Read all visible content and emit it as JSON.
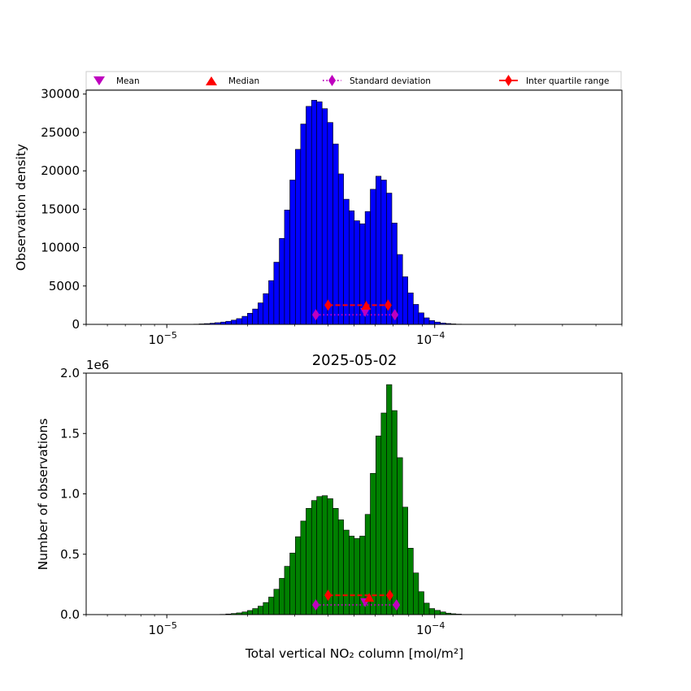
{
  "chart_data": [
    {
      "type": "bar",
      "xscale": "log",
      "xlim": [
        5e-06,
        0.0005
      ],
      "ylim": [
        0,
        30500
      ],
      "xlabel": "",
      "ylabel": "Observation density",
      "title": "",
      "x_tick_labels": [
        {
          "value": 1e-05,
          "base": "10",
          "exp": "−5"
        },
        {
          "value": 0.0001,
          "base": "10",
          "exp": "−4"
        }
      ],
      "y_ticks": [
        0,
        5000,
        10000,
        15000,
        20000,
        25000,
        30000
      ],
      "y_tick_labels": [
        "0",
        "5000",
        "10000",
        "15000",
        "20000",
        "25000",
        "30000"
      ],
      "bar_color": "#0000ff",
      "bins": [
        [
          1.26e-05,
          1.32e-05,
          30
        ],
        [
          1.32e-05,
          1.38e-05,
          60
        ],
        [
          1.38e-05,
          1.45e-05,
          100
        ],
        [
          1.45e-05,
          1.51e-05,
          150
        ],
        [
          1.51e-05,
          1.59e-05,
          220
        ],
        [
          1.59e-05,
          1.66e-05,
          300
        ],
        [
          1.66e-05,
          1.74e-05,
          400
        ],
        [
          1.74e-05,
          1.82e-05,
          550
        ],
        [
          1.82e-05,
          1.91e-05,
          750
        ],
        [
          1.91e-05,
          2e-05,
          1050
        ],
        [
          2e-05,
          2.09e-05,
          1450
        ],
        [
          2.09e-05,
          2.19e-05,
          2000
        ],
        [
          2.19e-05,
          2.29e-05,
          2800
        ],
        [
          2.29e-05,
          2.4e-05,
          4000
        ],
        [
          2.4e-05,
          2.51e-05,
          5700
        ],
        [
          2.51e-05,
          2.63e-05,
          8100
        ],
        [
          2.63e-05,
          2.75e-05,
          11200
        ],
        [
          2.75e-05,
          2.88e-05,
          14900
        ],
        [
          2.88e-05,
          3.02e-05,
          18800
        ],
        [
          3.02e-05,
          3.16e-05,
          22800
        ],
        [
          3.16e-05,
          3.31e-05,
          26100
        ],
        [
          3.31e-05,
          3.47e-05,
          28400
        ],
        [
          3.47e-05,
          3.63e-05,
          29200
        ],
        [
          3.63e-05,
          3.8e-05,
          29000
        ],
        [
          3.8e-05,
          3.98e-05,
          28100
        ],
        [
          3.98e-05,
          4.17e-05,
          26300
        ],
        [
          4.17e-05,
          4.37e-05,
          23500
        ],
        [
          4.37e-05,
          4.57e-05,
          19600
        ],
        [
          4.57e-05,
          4.79e-05,
          16300
        ],
        [
          4.79e-05,
          5.01e-05,
          14800
        ],
        [
          5.01e-05,
          5.25e-05,
          13500
        ],
        [
          5.25e-05,
          5.5e-05,
          13100
        ],
        [
          5.5e-05,
          5.75e-05,
          14700
        ],
        [
          5.75e-05,
          6.03e-05,
          17600
        ],
        [
          6.03e-05,
          6.31e-05,
          19300
        ],
        [
          6.31e-05,
          6.61e-05,
          18800
        ],
        [
          6.61e-05,
          6.92e-05,
          17100
        ],
        [
          6.92e-05,
          7.24e-05,
          13200
        ],
        [
          7.24e-05,
          7.59e-05,
          9100
        ],
        [
          7.59e-05,
          7.94e-05,
          6200
        ],
        [
          7.94e-05,
          8.32e-05,
          4100
        ],
        [
          8.32e-05,
          8.71e-05,
          2600
        ],
        [
          8.71e-05,
          9.12e-05,
          1500
        ],
        [
          9.12e-05,
          9.55e-05,
          850
        ],
        [
          9.55e-05,
          0.0001,
          500
        ],
        [
          0.0001,
          0.000105,
          300
        ],
        [
          0.000105,
          0.00011,
          180
        ],
        [
          0.00011,
          0.000115,
          110
        ],
        [
          0.000115,
          0.00012,
          60
        ],
        [
          0.00012,
          0.000126,
          30
        ]
      ],
      "stats": {
        "mean": {
          "x": 5.5e-05,
          "y": 1500
        },
        "median": {
          "x": 5.55e-05,
          "y": 2450
        },
        "std_range": [
          3.6e-05,
          7.1e-05
        ],
        "std_y": 1250,
        "iqr_range": [
          4e-05,
          6.7e-05
        ],
        "iqr_y": 2500
      }
    },
    {
      "type": "bar",
      "xscale": "log",
      "xlim": [
        5e-06,
        0.0005
      ],
      "ylim": [
        0,
        2000000
      ],
      "xlabel": "Total vertical NO₂ column [mol/m²]",
      "ylabel": "Number of observations",
      "title": "2025-05-02",
      "offset_label": "1e6",
      "x_tick_labels": [
        {
          "value": 1e-05,
          "base": "10",
          "exp": "−5"
        },
        {
          "value": 0.0001,
          "base": "10",
          "exp": "−4"
        }
      ],
      "y_ticks": [
        0,
        500000,
        1000000,
        1500000,
        2000000
      ],
      "y_tick_labels": [
        "0.0",
        "0.5",
        "1.0",
        "1.5",
        "2.0"
      ],
      "bar_color": "#008000",
      "bins": [
        [
          1.58e-05,
          1.66e-05,
          2000
        ],
        [
          1.66e-05,
          1.74e-05,
          5000
        ],
        [
          1.74e-05,
          1.82e-05,
          9000
        ],
        [
          1.82e-05,
          1.91e-05,
          14000
        ],
        [
          1.91e-05,
          2e-05,
          22000
        ],
        [
          2e-05,
          2.09e-05,
          34000
        ],
        [
          2.09e-05,
          2.19e-05,
          50000
        ],
        [
          2.19e-05,
          2.29e-05,
          70000
        ],
        [
          2.29e-05,
          2.4e-05,
          100000
        ],
        [
          2.4e-05,
          2.51e-05,
          145000
        ],
        [
          2.51e-05,
          2.63e-05,
          210000
        ],
        [
          2.63e-05,
          2.75e-05,
          300000
        ],
        [
          2.75e-05,
          2.88e-05,
          400000
        ],
        [
          2.88e-05,
          3.02e-05,
          510000
        ],
        [
          3.02e-05,
          3.16e-05,
          645000
        ],
        [
          3.16e-05,
          3.31e-05,
          775000
        ],
        [
          3.31e-05,
          3.47e-05,
          880000
        ],
        [
          3.47e-05,
          3.63e-05,
          945000
        ],
        [
          3.63e-05,
          3.8e-05,
          978000
        ],
        [
          3.8e-05,
          3.98e-05,
          985000
        ],
        [
          3.98e-05,
          4.17e-05,
          960000
        ],
        [
          4.17e-05,
          4.37e-05,
          880000
        ],
        [
          4.37e-05,
          4.57e-05,
          785000
        ],
        [
          4.57e-05,
          4.79e-05,
          700000
        ],
        [
          4.79e-05,
          5.01e-05,
          650000
        ],
        [
          5.01e-05,
          5.25e-05,
          630000
        ],
        [
          5.25e-05,
          5.5e-05,
          650000
        ],
        [
          5.5e-05,
          5.75e-05,
          830000
        ],
        [
          5.75e-05,
          6.03e-05,
          1170000
        ],
        [
          6.03e-05,
          6.31e-05,
          1480000
        ],
        [
          6.31e-05,
          6.61e-05,
          1670000
        ],
        [
          6.61e-05,
          6.92e-05,
          1905000
        ],
        [
          6.92e-05,
          7.24e-05,
          1690000
        ],
        [
          7.24e-05,
          7.59e-05,
          1300000
        ],
        [
          7.59e-05,
          7.94e-05,
          890000
        ],
        [
          7.94e-05,
          8.32e-05,
          550000
        ],
        [
          8.32e-05,
          8.71e-05,
          345000
        ],
        [
          8.71e-05,
          9.12e-05,
          190000
        ],
        [
          9.12e-05,
          9.55e-05,
          95000
        ],
        [
          9.55e-05,
          0.0001,
          50000
        ],
        [
          0.0001,
          0.000105,
          35000
        ],
        [
          0.000105,
          0.00011,
          22000
        ],
        [
          0.00011,
          0.000115,
          12000
        ],
        [
          0.000115,
          0.00012,
          7000
        ],
        [
          0.00012,
          0.000126,
          4000
        ]
      ],
      "stats": {
        "mean": {
          "x": 5.5e-05,
          "y": 95000
        },
        "median": {
          "x": 5.7e-05,
          "y": 140000
        },
        "std_range": [
          3.6e-05,
          7.2e-05
        ],
        "std_y": 80000,
        "iqr_range": [
          4e-05,
          6.8e-05
        ],
        "iqr_y": 160000
      }
    }
  ],
  "legend": {
    "items": [
      {
        "label": "Mean",
        "marker": "triangle-down",
        "color": "#bf00bf"
      },
      {
        "label": "Median",
        "marker": "triangle-up",
        "color": "#ff0000"
      },
      {
        "label": "Standard deviation",
        "marker": "diamond-dotted",
        "color": "#bf00bf"
      },
      {
        "label": "Inter quartile range",
        "marker": "diamond-line",
        "color": "#ff0000"
      }
    ],
    "placement": "top, above first chart"
  }
}
